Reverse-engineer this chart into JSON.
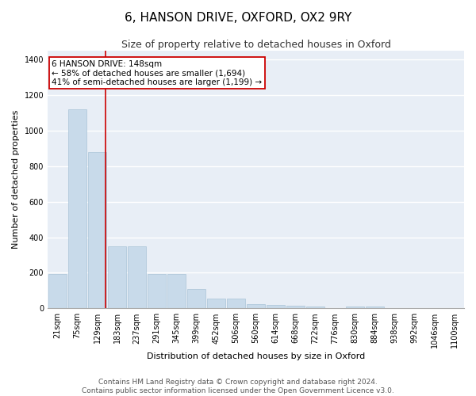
{
  "title": "6, HANSON DRIVE, OXFORD, OX2 9RY",
  "subtitle": "Size of property relative to detached houses in Oxford",
  "xlabel": "Distribution of detached houses by size in Oxford",
  "ylabel": "Number of detached properties",
  "footer1": "Contains HM Land Registry data © Crown copyright and database right 2024.",
  "footer2": "Contains public sector information licensed under the Open Government Licence v3.0.",
  "categories": [
    "21sqm",
    "75sqm",
    "129sqm",
    "183sqm",
    "237sqm",
    "291sqm",
    "345sqm",
    "399sqm",
    "452sqm",
    "506sqm",
    "560sqm",
    "614sqm",
    "668sqm",
    "722sqm",
    "776sqm",
    "830sqm",
    "884sqm",
    "938sqm",
    "992sqm",
    "1046sqm",
    "1100sqm"
  ],
  "values": [
    195,
    1120,
    880,
    350,
    350,
    195,
    195,
    110,
    57,
    57,
    25,
    20,
    15,
    10,
    0,
    10,
    10,
    0,
    0,
    0,
    0
  ],
  "bar_color": "#c8daea",
  "bar_edge_color": "#aac4d8",
  "vline_x_index": 2.42,
  "annotation_box_text": "6 HANSON DRIVE: 148sqm\n← 58% of detached houses are smaller (1,694)\n41% of semi-detached houses are larger (1,199) →",
  "annotation_box_color": "white",
  "annotation_box_edge_color": "#cc0000",
  "vline_color": "#cc0000",
  "ylim": [
    0,
    1450
  ],
  "yticks": [
    0,
    200,
    400,
    600,
    800,
    1000,
    1200,
    1400
  ],
  "background_color": "#e8eef6",
  "grid_color": "white",
  "title_fontsize": 11,
  "subtitle_fontsize": 9,
  "axis_label_fontsize": 8,
  "tick_fontsize": 7,
  "annotation_fontsize": 7.5,
  "footer_fontsize": 6.5
}
